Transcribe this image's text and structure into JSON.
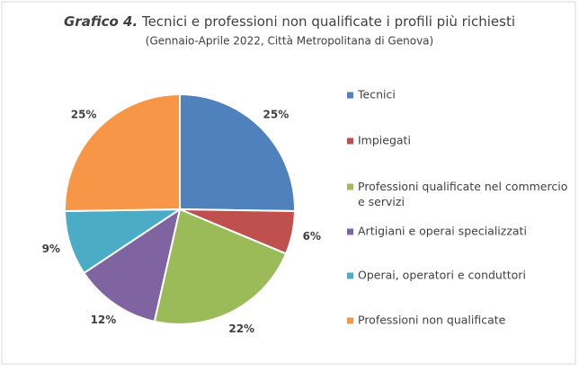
{
  "chart_data": {
    "type": "pie",
    "title_label": "Grafico 4.",
    "title": "Tecnici e professioni non qualificate i profili più richiesti",
    "subtitle": "(Gennaio-Aprile 2022, Città Metropolitana di Genova)",
    "categories": [
      "Tecnici",
      "Impiegati",
      "Professioni qualificate nel commercio e servizi",
      "Artigiani e operai specializzati",
      "Operai, operatori e conduttori",
      "Professioni non qualificate"
    ],
    "values": [
      25,
      6,
      22,
      12,
      9,
      25
    ],
    "value_labels": [
      "25%",
      "6%",
      "22%",
      "12%",
      "9%",
      "25%"
    ],
    "colors": [
      "#4f81bd",
      "#c0504d",
      "#9bbb59",
      "#8064a2",
      "#4bacc6",
      "#f79646"
    ],
    "legend": "right"
  }
}
